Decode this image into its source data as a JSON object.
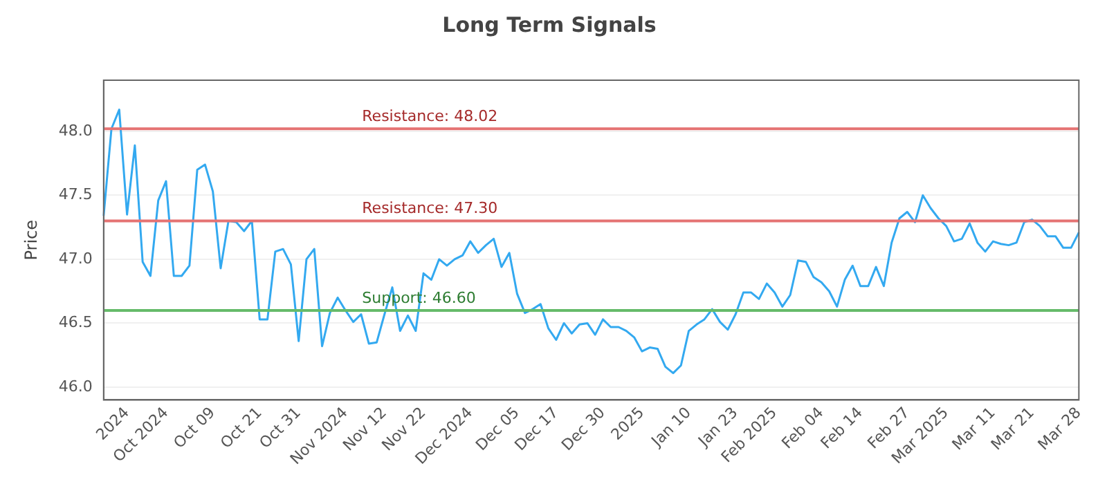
{
  "chart_data": {
    "type": "line",
    "title": "Long Term Signals",
    "ylabel": "Price",
    "categories": [
      null,
      null,
      null,
      "2024",
      null,
      null,
      null,
      null,
      "Oct 2024",
      null,
      null,
      null,
      null,
      null,
      "Oct 09",
      null,
      null,
      null,
      null,
      null,
      "Oct 21",
      null,
      null,
      null,
      null,
      "Oct 31",
      null,
      null,
      null,
      null,
      null,
      "Nov 2024",
      null,
      null,
      null,
      null,
      "Nov 12",
      null,
      null,
      null,
      null,
      "Nov 22",
      null,
      null,
      null,
      null,
      null,
      "Dec 2024",
      null,
      null,
      null,
      null,
      null,
      "Dec 05",
      null,
      null,
      null,
      null,
      "Dec 17",
      null,
      null,
      null,
      null,
      null,
      "Dec 30",
      null,
      null,
      null,
      null,
      "2025",
      null,
      null,
      null,
      null,
      null,
      "Jan 10",
      null,
      null,
      null,
      null,
      null,
      "Jan 23",
      null,
      null,
      null,
      null,
      "Feb 2025",
      null,
      null,
      null,
      null,
      null,
      "Feb 04",
      null,
      null,
      null,
      null,
      "Feb 14",
      null,
      null,
      null,
      null,
      null,
      "Feb 27",
      null,
      null,
      null,
      null,
      "Mar 2025",
      null,
      null,
      null,
      null,
      null,
      "Mar 11",
      null,
      null,
      null,
      null,
      "Mar 21",
      null,
      null,
      null,
      null,
      null,
      "Mar 28"
    ],
    "series": [
      {
        "color": "#33a9f0",
        "values": [
          47.34,
          48.02,
          48.17,
          47.35,
          47.89,
          46.98,
          46.87,
          47.46,
          47.61,
          46.87,
          46.87,
          46.95,
          47.7,
          47.74,
          47.53,
          46.93,
          47.3,
          47.29,
          47.22,
          47.3,
          46.53,
          46.53,
          47.06,
          47.08,
          46.96,
          46.36,
          47.0,
          47.08,
          46.32,
          46.58,
          46.7,
          46.6,
          46.51,
          46.57,
          46.34,
          46.35,
          46.57,
          46.78,
          46.44,
          46.56,
          46.44,
          46.89,
          46.84,
          47.0,
          46.95,
          47.0,
          47.03,
          47.14,
          47.05,
          47.11,
          47.16,
          46.94,
          47.05,
          46.73,
          46.58,
          46.61,
          46.65,
          46.46,
          46.37,
          46.5,
          46.42,
          46.49,
          46.5,
          46.41,
          46.53,
          46.47,
          46.47,
          46.44,
          46.39,
          46.28,
          46.31,
          46.3,
          46.16,
          46.11,
          46.17,
          46.44,
          46.49,
          46.53,
          46.61,
          46.51,
          46.45,
          46.57,
          46.74,
          46.74,
          46.69,
          46.81,
          46.74,
          46.63,
          46.72,
          46.99,
          46.98,
          46.86,
          46.82,
          46.75,
          46.63,
          46.84,
          46.95,
          46.79,
          46.79,
          46.94,
          46.79,
          47.13,
          47.32,
          47.37,
          47.29,
          47.5,
          47.4,
          47.32,
          47.26,
          47.14,
          47.16,
          47.28,
          47.13,
          47.06,
          47.14,
          47.12,
          47.11,
          47.13,
          47.29,
          47.31,
          47.26,
          47.18,
          47.18,
          47.09,
          47.09,
          47.21
        ]
      }
    ],
    "ylim": [
      45.9,
      48.4
    ],
    "yticks": [
      {
        "value": 46,
        "label": "46.0"
      },
      {
        "value": 46.5,
        "label": "46.5"
      },
      {
        "value": 47,
        "label": "47.0"
      },
      {
        "value": 47.5,
        "label": "47.5"
      },
      {
        "value": 48,
        "label": "48.0"
      }
    ],
    "grid": "y",
    "legend": false,
    "marker": "none",
    "line_style": "solid",
    "ref_lines": [
      {
        "axis": "y",
        "value": 48.02,
        "label": "Resistance: 48.02",
        "color": "#e57373"
      },
      {
        "axis": "y",
        "value": 47.3,
        "label": "Resistance: 47.30",
        "color": "#e57373"
      },
      {
        "axis": "y",
        "value": 46.6,
        "label": "Support: 46.60",
        "color": "#66bb6a"
      }
    ]
  }
}
